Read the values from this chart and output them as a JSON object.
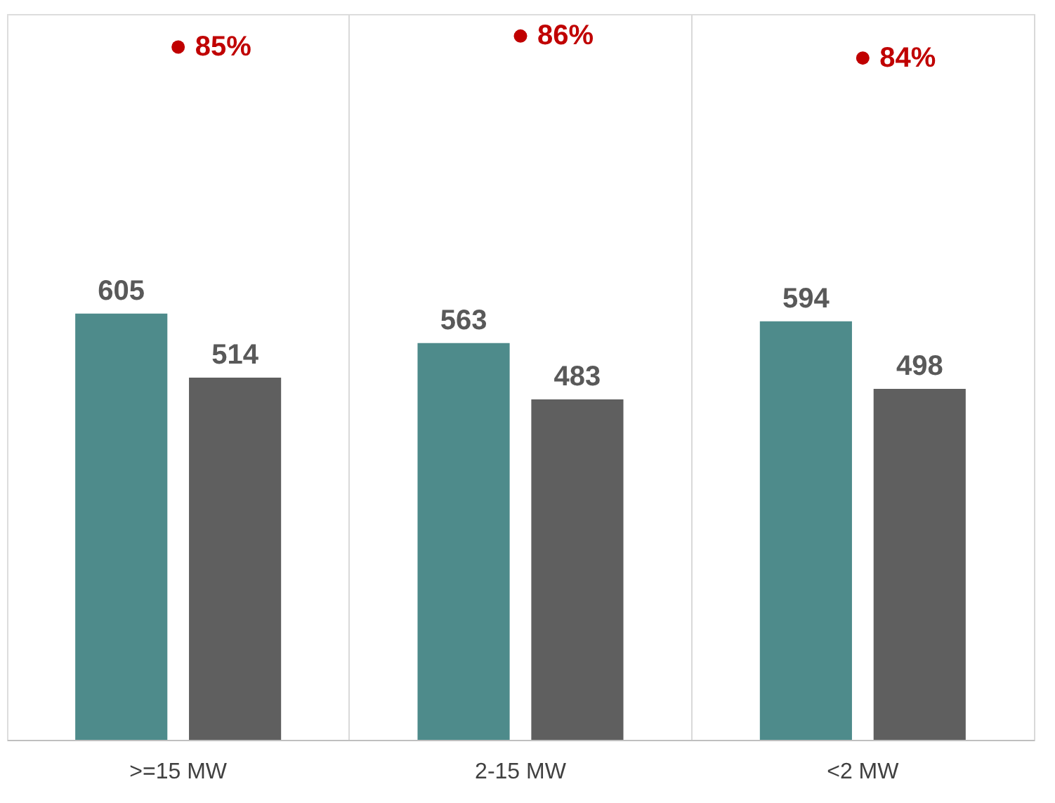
{
  "chart_data": {
    "type": "bar",
    "categories": [
      ">=15 MW",
      "2-15 MW",
      "<2 MW"
    ],
    "series": [
      {
        "color": "#4e8b8b",
        "values": [
          605,
          563,
          594
        ]
      },
      {
        "color": "#5f5f5f",
        "values": [
          514,
          483,
          498
        ]
      },
      {
        "type": "scatter",
        "axis": "y2",
        "color": "#c00000",
        "marker": "circle",
        "values": [
          85,
          86,
          84
        ],
        "value_labels": [
          "85%",
          "86%",
          "84%"
        ]
      }
    ],
    "ylim": [
      0,
      1030
    ],
    "y2lim": [
      22,
      88
    ],
    "data_labels": true,
    "grid": "x",
    "tick_labels": "x"
  }
}
